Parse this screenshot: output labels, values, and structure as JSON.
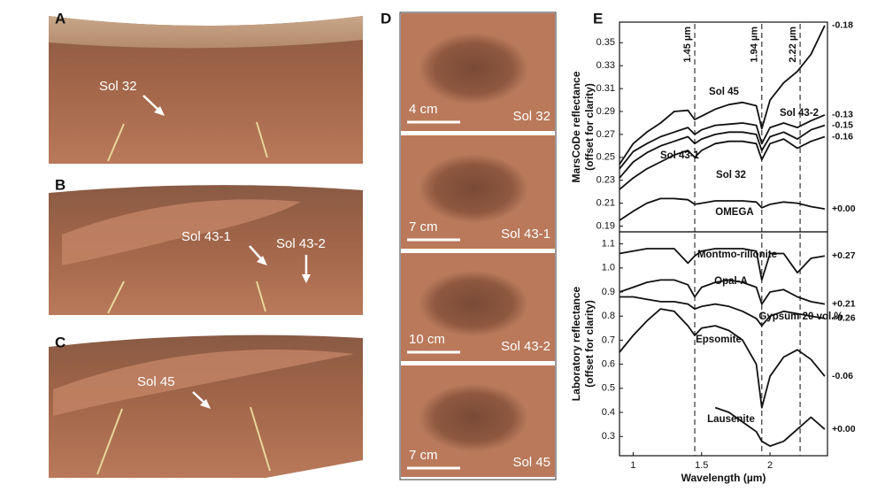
{
  "panels": {
    "A": {
      "label": "A",
      "annotations": [
        "Sol 32"
      ]
    },
    "B": {
      "label": "B",
      "annotations": [
        "Sol 43-1",
        "Sol 43-2"
      ]
    },
    "C": {
      "label": "C",
      "annotations": [
        "Sol 45"
      ]
    },
    "D": {
      "label": "D",
      "images": [
        {
          "scale": "4 cm",
          "sol": "Sol 32"
        },
        {
          "scale": "7 cm",
          "sol": "Sol 43-1"
        },
        {
          "scale": "10 cm",
          "sol": "Sol 43-2"
        },
        {
          "scale": "7 cm",
          "sol": "Sol 45"
        }
      ]
    },
    "E": {
      "label": "E"
    }
  },
  "chart_data": [
    {
      "type": "line",
      "ylabel": "MarsCoDe reflectance",
      "ylabel_note": "(offset for clarity)",
      "x": [
        0.9,
        1.0,
        1.1,
        1.2,
        1.3,
        1.4,
        1.45,
        1.5,
        1.6,
        1.7,
        1.8,
        1.9,
        1.94,
        2.0,
        2.1,
        2.2,
        2.3,
        2.4
      ],
      "xlim": [
        0.9,
        2.42
      ],
      "ylim": [
        0.185,
        0.368
      ],
      "yticks": [
        0.19,
        0.21,
        0.23,
        0.25,
        0.27,
        0.29,
        0.31,
        0.33,
        0.35
      ],
      "markers": [
        {
          "value": 1.45,
          "label": "1.45 µm"
        },
        {
          "value": 1.94,
          "label": "1.94 µm"
        },
        {
          "value": 2.22,
          "label": "2.22 µm"
        }
      ],
      "series": [
        {
          "name": "Sol 45",
          "offset_label": "-0.18",
          "color": "#111111",
          "values": [
            0.244,
            0.262,
            0.272,
            0.28,
            0.29,
            0.291,
            0.283,
            0.286,
            0.292,
            0.296,
            0.298,
            0.295,
            0.275,
            0.3,
            0.315,
            0.325,
            0.34,
            0.365
          ]
        },
        {
          "name": "Sol 43-2",
          "offset_label": "-0.13",
          "color": "#111111",
          "values": [
            0.24,
            0.255,
            0.262,
            0.268,
            0.272,
            0.276,
            0.27,
            0.274,
            0.278,
            0.279,
            0.28,
            0.278,
            0.262,
            0.276,
            0.28,
            0.276,
            0.282,
            0.287
          ]
        },
        {
          "name": "Sol 43-1",
          "offset_label": "-0.15",
          "color": "#111111",
          "values": [
            0.232,
            0.246,
            0.254,
            0.26,
            0.264,
            0.268,
            0.262,
            0.266,
            0.27,
            0.272,
            0.272,
            0.27,
            0.256,
            0.268,
            0.272,
            0.266,
            0.274,
            0.278
          ]
        },
        {
          "name": "Sol 32",
          "offset_label": "-0.16",
          "color": "#111111",
          "values": [
            0.222,
            0.232,
            0.24,
            0.246,
            0.252,
            0.256,
            0.25,
            0.256,
            0.262,
            0.264,
            0.264,
            0.262,
            0.248,
            0.262,
            0.266,
            0.258,
            0.264,
            0.268
          ]
        },
        {
          "name": "OMEGA",
          "offset_label": "+0.00",
          "color": "#111111",
          "values": [
            0.195,
            0.203,
            0.21,
            0.214,
            0.214,
            0.213,
            0.209,
            0.21,
            0.212,
            0.212,
            0.212,
            0.211,
            0.206,
            0.209,
            0.211,
            0.21,
            0.207,
            0.205
          ]
        }
      ]
    },
    {
      "type": "line",
      "ylabel": "Laboratory reflectance",
      "ylabel_note": "(offset for clarity)",
      "xlabel": "Wavelength (µm)",
      "x": [
        0.9,
        1.0,
        1.1,
        1.2,
        1.3,
        1.4,
        1.45,
        1.5,
        1.6,
        1.7,
        1.8,
        1.9,
        1.94,
        2.0,
        2.1,
        2.2,
        2.3,
        2.4
      ],
      "xlim": [
        0.9,
        2.42
      ],
      "ylim": [
        0.22,
        1.15
      ],
      "xticks": [
        1,
        1.5,
        2
      ],
      "yticks": [
        0.3,
        0.4,
        0.5,
        0.6,
        0.7,
        0.8,
        0.9,
        {
          "value": 1,
          "label": "1.0"
        },
        1.1
      ],
      "markers": [
        1.45,
        1.94,
        2.22
      ],
      "series": [
        {
          "name": "Montmo-rillonite",
          "offset_label": "+0.27",
          "color": "#111111",
          "values": [
            1.06,
            1.07,
            1.08,
            1.08,
            1.08,
            1.02,
            1.05,
            1.07,
            1.08,
            1.08,
            1.08,
            1.07,
            0.95,
            1.06,
            1.06,
            0.98,
            1.04,
            1.05
          ]
        },
        {
          "name": "Opal-A",
          "offset_label": "+0.21",
          "color": "#111111",
          "values": [
            0.9,
            0.92,
            0.94,
            0.95,
            0.95,
            0.93,
            0.88,
            0.92,
            0.94,
            0.95,
            0.94,
            0.92,
            0.85,
            0.9,
            0.91,
            0.88,
            0.86,
            0.85
          ]
        },
        {
          "name": "Gypsum 20 vol.%",
          "offset_label": "+0.26",
          "color": "#111111",
          "values": [
            0.88,
            0.88,
            0.87,
            0.86,
            0.86,
            0.85,
            0.83,
            0.84,
            0.85,
            0.84,
            0.82,
            0.79,
            0.76,
            0.8,
            0.82,
            0.81,
            0.8,
            0.79
          ]
        },
        {
          "name": "Epsomite",
          "offset_label": "-0.06",
          "color": "#111111",
          "values": [
            0.65,
            0.72,
            0.78,
            0.83,
            0.82,
            0.76,
            0.72,
            0.75,
            0.76,
            0.74,
            0.7,
            0.6,
            0.42,
            0.55,
            0.63,
            0.66,
            0.62,
            0.55
          ]
        },
        {
          "name": "Lausenite",
          "offset_label": "+0.00",
          "color": "#111111",
          "values": [
            null,
            null,
            null,
            null,
            null,
            null,
            null,
            null,
            0.42,
            0.4,
            0.36,
            0.32,
            0.28,
            0.26,
            0.28,
            0.33,
            0.38,
            0.33
          ]
        }
      ]
    }
  ]
}
